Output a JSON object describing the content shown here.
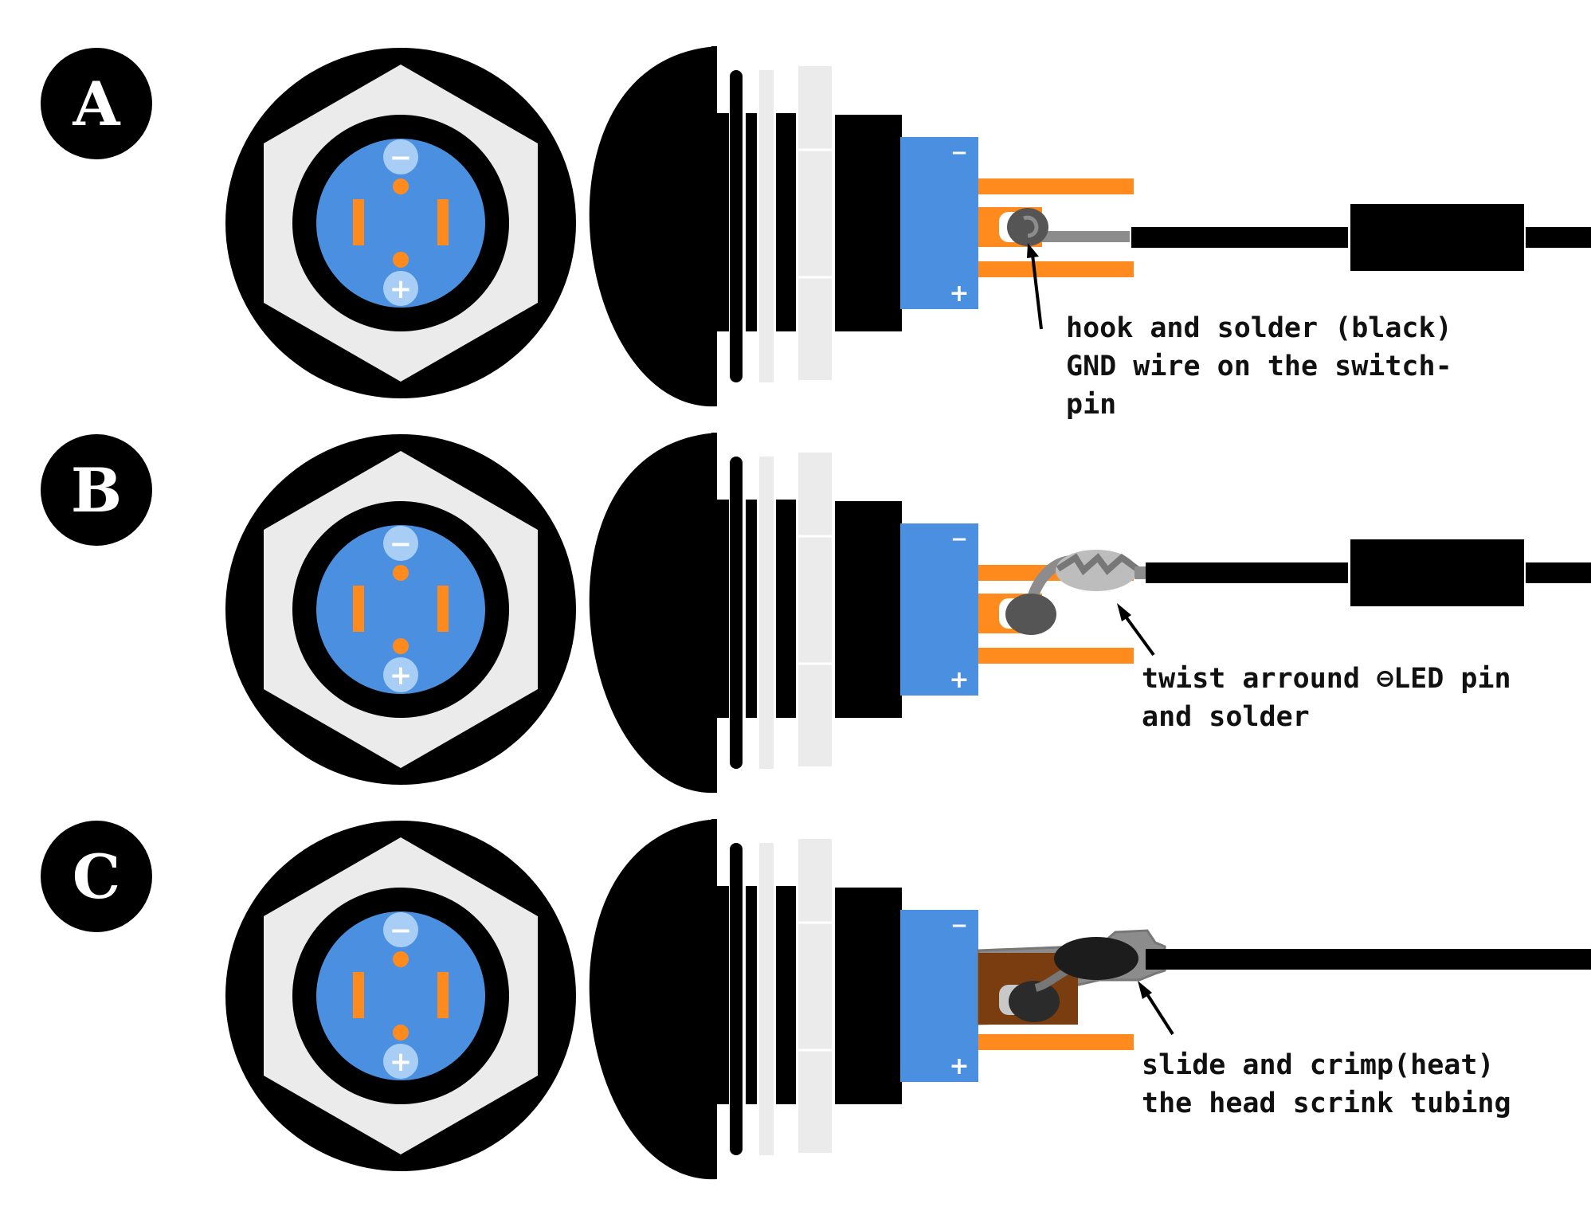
{
  "colors": {
    "black": "#000000",
    "nut_gray": "#ebebeb",
    "button_blue": "#4a8fe0",
    "terminal_orange": "#ff8a1e",
    "solder_gray": "#555555",
    "shrink_tube_gray": "#8c8c8c"
  },
  "symbols": {
    "minus": "−",
    "plus": "+"
  },
  "steps": [
    {
      "label": "A",
      "note_lines": [
        "hook and solder (black)",
        "GND wire on the switch-",
        "pin"
      ]
    },
    {
      "label": "B",
      "note_lines": [
        "twist arround ⊖LED pin",
        "and solder"
      ]
    },
    {
      "label": "C",
      "note_lines": [
        "slide and crimp(heat)",
        "the head scrink tubing"
      ]
    }
  ]
}
